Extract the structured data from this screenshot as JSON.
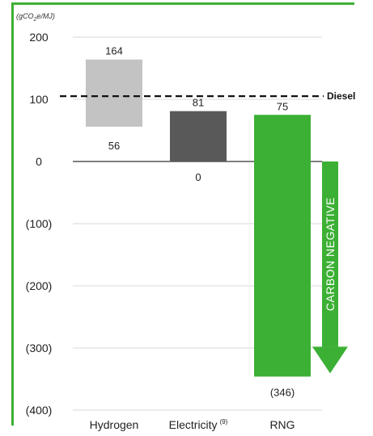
{
  "colors": {
    "frame": "#3cb034",
    "hydrogen": "#c3c3c3",
    "electricity": "#595959",
    "rng": "#3cb034",
    "arrow": "#3cb034",
    "grid": "#d9d9d9"
  },
  "chart_data": {
    "type": "bar",
    "subtype": "floating-range",
    "unit_label": "(gCO2e/MJ)",
    "ylim": [
      -400,
      200
    ],
    "yticks": [
      {
        "value": 200,
        "label": "200"
      },
      {
        "value": 100,
        "label": "100"
      },
      {
        "value": 0,
        "label": "0"
      },
      {
        "value": -100,
        "label": "(100)"
      },
      {
        "value": -200,
        "label": "(200)"
      },
      {
        "value": -300,
        "label": "(300)"
      },
      {
        "value": -400,
        "label": "(400)"
      }
    ],
    "grid": true,
    "categories": [
      {
        "name": "Hydrogen",
        "superscript": "",
        "low": 56,
        "high": 164,
        "low_label": "56",
        "high_label": "164",
        "low_label_pos": "inside-below",
        "color_key": "hydrogen"
      },
      {
        "name": "Electricity",
        "superscript": "(9)",
        "low": 0,
        "high": 81,
        "low_label": "0",
        "high_label": "81",
        "low_label_pos": "below",
        "color_key": "electricity"
      },
      {
        "name": "RNG",
        "superscript": "",
        "low": -346,
        "high": 75,
        "low_label": "(346)",
        "high_label": "75",
        "low_label_pos": "below",
        "color_key": "rng"
      }
    ],
    "reference_line": {
      "value": 105,
      "label": "Diesel",
      "style": "dashed"
    },
    "annotation": {
      "text": "CARBON NEGATIVE",
      "from": 0,
      "to": -346,
      "style": "down-arrow"
    }
  }
}
